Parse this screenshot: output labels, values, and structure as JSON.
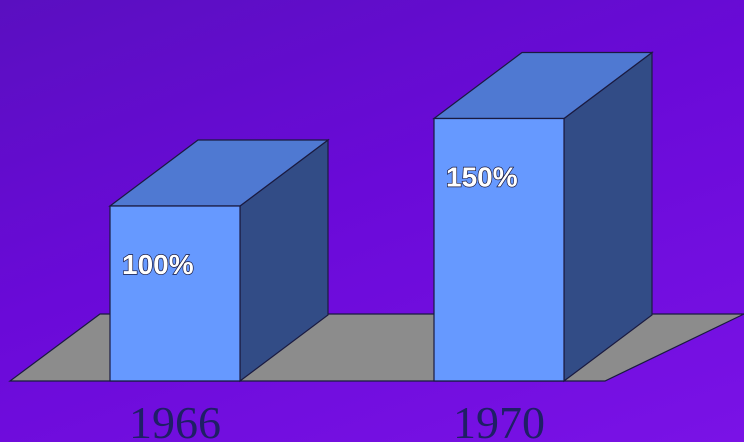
{
  "chart_data": {
    "type": "bar",
    "style": "3d",
    "categories": [
      "1966",
      "1970"
    ],
    "values": [
      100,
      150
    ],
    "data_labels": [
      "100%",
      "150%"
    ],
    "unit": "%",
    "ylim": [
      0,
      240
    ],
    "grid": false,
    "colors": {
      "background": "#6a0ad8",
      "floor": "#8c8c8c",
      "bar_front": "#6699ff",
      "bar_top": "#4f79d2",
      "bar_side": "#324c86",
      "outline": "#1a1a40",
      "category_text": "#1f1f66"
    }
  }
}
